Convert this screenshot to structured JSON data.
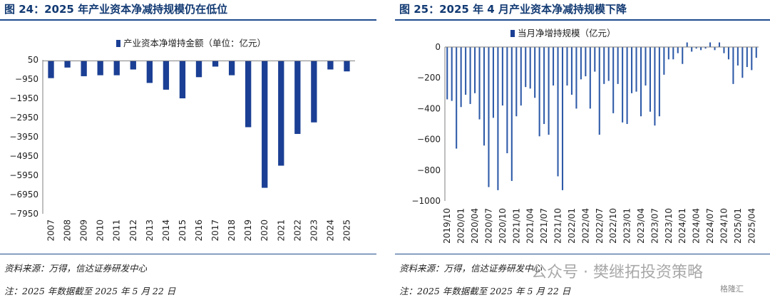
{
  "left": {
    "title": "图 24：2025 年产业资本净减持规模仍在低位",
    "source": "资料来源：万得，信达证券研发中心",
    "note": "注：2025 年数据截至 2025 年 5 月 22 日"
  },
  "right": {
    "title": "图 25：2025 年 4 月产业资本净减持规模下降",
    "source": "资料来源：万得，信达证券研发中心",
    "note": "注：2025 年数据截至 2025 年 5 月 22 日"
  },
  "watermark": {
    "text": "公众号 · 樊继拓投资策略",
    "badge": "格隆汇"
  },
  "colors": {
    "bar_dark": "#1b3f94",
    "bar_light": "#2e5aa8",
    "axis": "#7f7f7f"
  },
  "chart_data": [
    {
      "type": "bar",
      "legend": "产业资本净增持金额（单位：亿元）",
      "legend_position": "top",
      "categories": [
        "2007",
        "2008",
        "2009",
        "2010",
        "2011",
        "2012",
        "2013",
        "2014",
        "2015",
        "2016",
        "2017",
        "2018",
        "2019",
        "2020",
        "2021",
        "2022",
        "2023",
        "2024",
        "2025"
      ],
      "series": [
        {
          "name": "产业资本净增持金额（单位：亿元）",
          "values": [
            -900,
            -350,
            -800,
            -750,
            -750,
            -450,
            -1150,
            -1500,
            -1950,
            -850,
            -300,
            -750,
            -3450,
            -6600,
            -5450,
            -3800,
            -3200,
            -450,
            -550
          ]
        }
      ],
      "yticks": [
        50,
        -950,
        -1950,
        -2950,
        -3950,
        -4950,
        -5950,
        -6950,
        -7950
      ],
      "ylim": [
        -7950,
        50
      ],
      "grid": false
    },
    {
      "type": "bar",
      "legend": "当月净增持规模（亿元）",
      "legend_position": "top",
      "categories": [
        "2019/10",
        "2019/11",
        "2019/12",
        "2020/01",
        "2020/02",
        "2020/03",
        "2020/04",
        "2020/05",
        "2020/06",
        "2020/07",
        "2020/08",
        "2020/09",
        "2020/10",
        "2020/11",
        "2020/12",
        "2021/01",
        "2021/02",
        "2021/03",
        "2021/04",
        "2021/05",
        "2021/06",
        "2021/07",
        "2021/08",
        "2021/09",
        "2021/10",
        "2021/11",
        "2021/12",
        "2022/01",
        "2022/02",
        "2022/03",
        "2022/04",
        "2022/05",
        "2022/06",
        "2022/07",
        "2022/08",
        "2022/09",
        "2022/10",
        "2022/11",
        "2022/12",
        "2023/01",
        "2023/02",
        "2023/03",
        "2023/04",
        "2023/05",
        "2023/06",
        "2023/07",
        "2023/08",
        "2023/09",
        "2023/10",
        "2023/11",
        "2023/12",
        "2024/01",
        "2024/02",
        "2024/03",
        "2024/04",
        "2024/05",
        "2024/06",
        "2024/07",
        "2024/08",
        "2024/09",
        "2024/10",
        "2024/11",
        "2024/12",
        "2025/01",
        "2025/02",
        "2025/03",
        "2025/04",
        "2025/05"
      ],
      "tick_labels": [
        "2019/10",
        "2020/01",
        "2020/04",
        "2020/07",
        "2020/10",
        "2021/01",
        "2021/04",
        "2021/07",
        "2021/10",
        "2022/01",
        "2022/04",
        "2022/07",
        "2022/10",
        "2023/01",
        "2023/04",
        "2023/07",
        "2023/10",
        "2024/01",
        "2024/04",
        "2024/07",
        "2024/10",
        "2025/01",
        "2025/04"
      ],
      "series": [
        {
          "name": "当月净增持规模（亿元）",
          "values": [
            -340,
            -350,
            -660,
            -390,
            -310,
            -370,
            -300,
            -470,
            -640,
            -910,
            -460,
            -930,
            -380,
            -690,
            -870,
            -450,
            -380,
            -260,
            -270,
            -330,
            -580,
            -500,
            -570,
            -250,
            -840,
            -930,
            -250,
            -310,
            -400,
            -210,
            -190,
            -400,
            -160,
            -570,
            -240,
            -220,
            -430,
            -240,
            -490,
            -500,
            -300,
            -290,
            -450,
            -250,
            -420,
            -510,
            -450,
            -180,
            -80,
            -80,
            -40,
            -110,
            30,
            -30,
            -10,
            -20,
            -10,
            30,
            -20,
            30,
            -40,
            -80,
            -240,
            -120,
            -200,
            -130,
            -150,
            -70
          ]
        }
      ],
      "yticks": [
        0,
        -200,
        -400,
        -600,
        -800,
        -1000
      ],
      "ylim": [
        -1000,
        0
      ],
      "grid": false
    }
  ]
}
